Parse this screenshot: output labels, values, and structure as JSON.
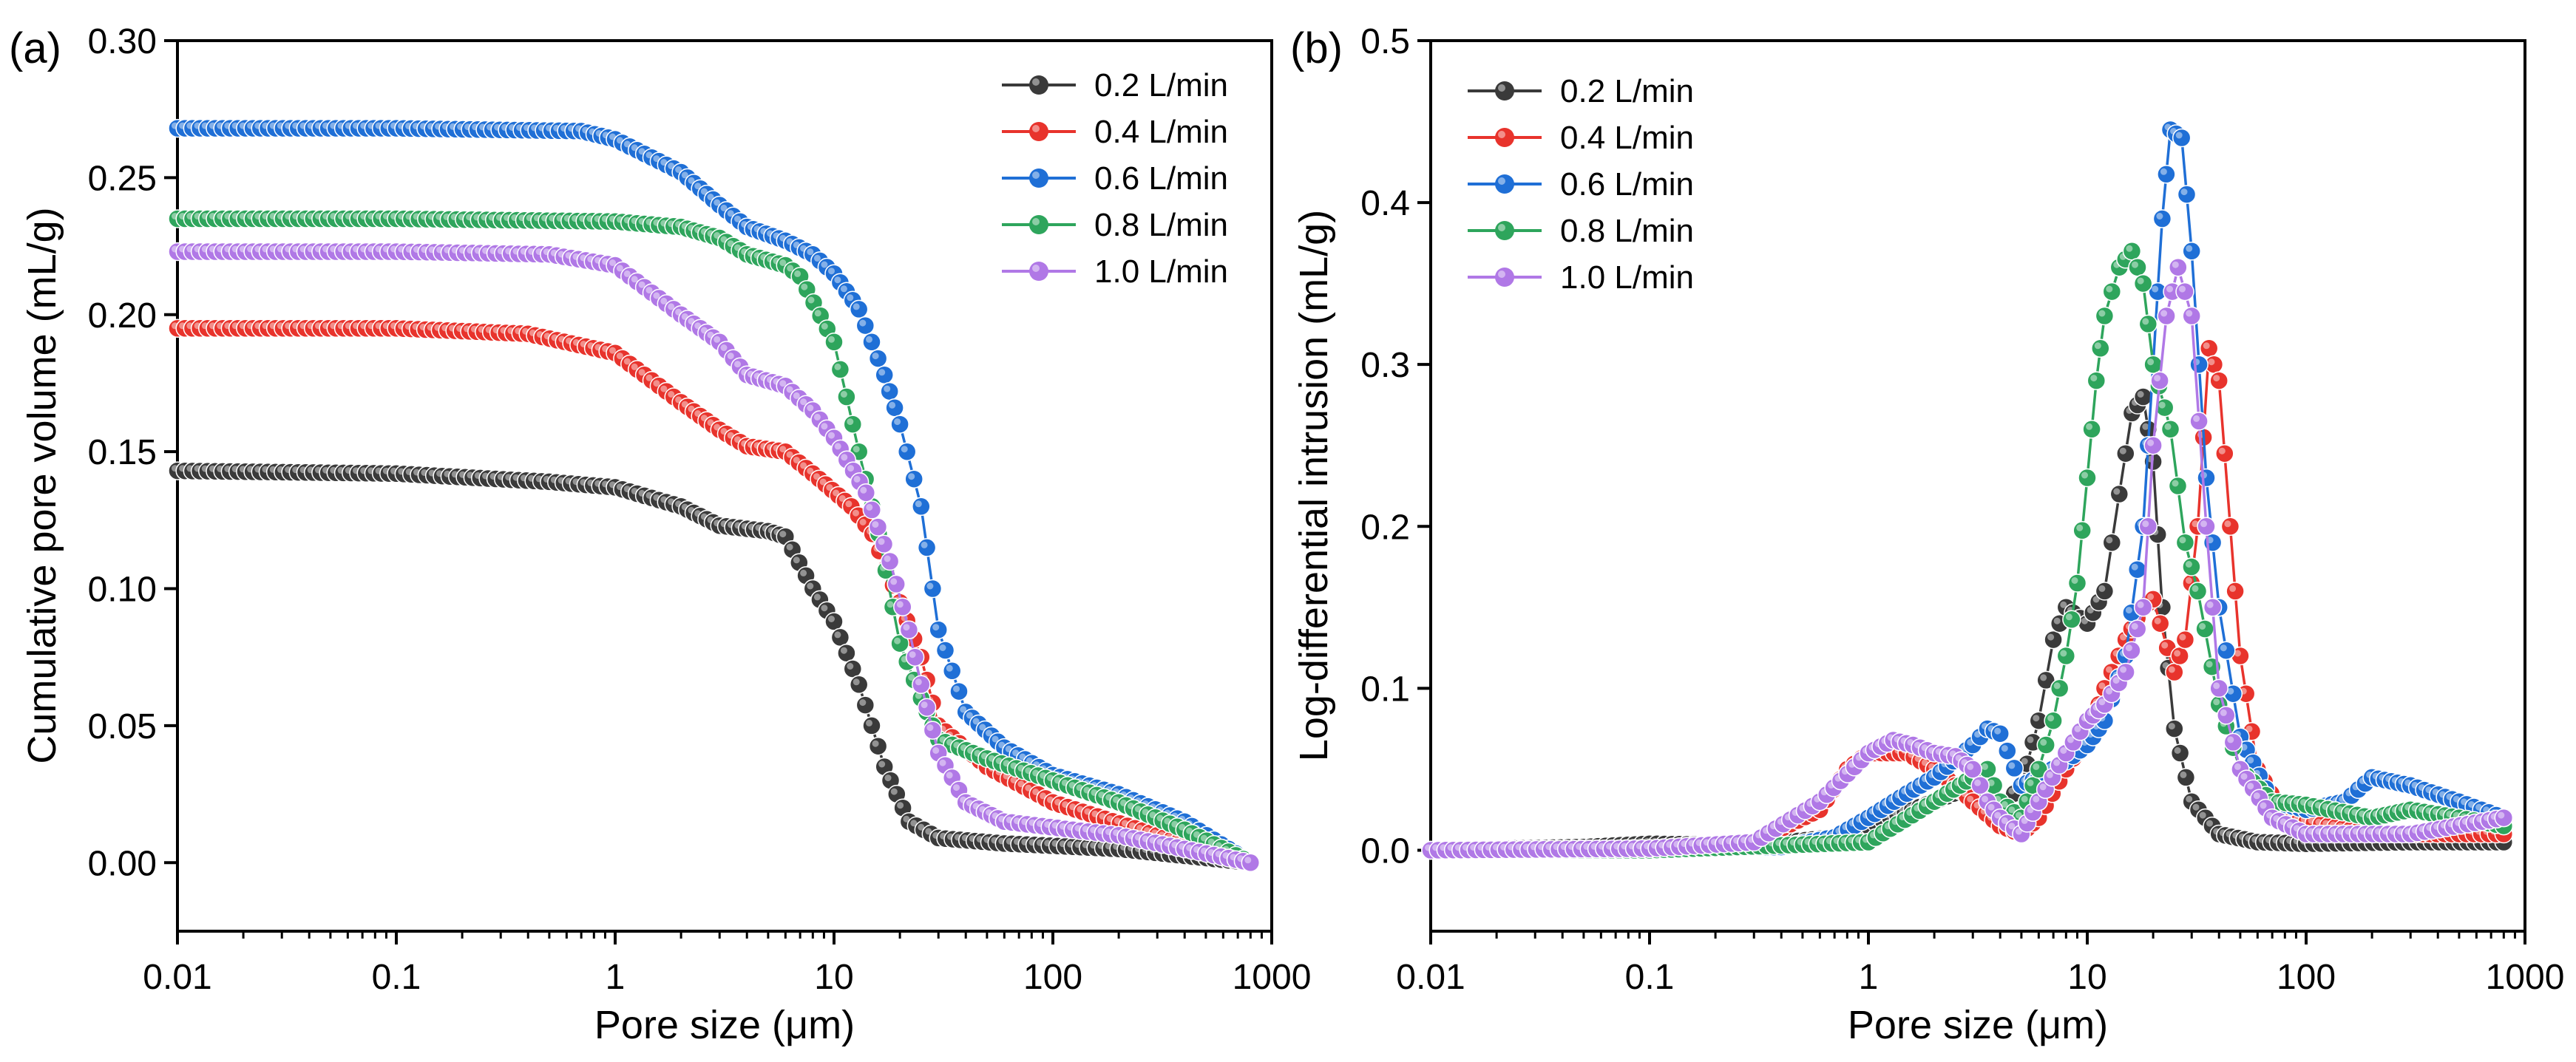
{
  "figure": {
    "legend_entries": [
      "0.2 L/min",
      "0.4 L/min",
      "0.6 L/min",
      "0.8 L/min",
      "1.0 L/min"
    ],
    "series_colors": [
      "#3a3a3a",
      "#e8332c",
      "#1f6fd6",
      "#2ea55c",
      "#b078e6"
    ]
  },
  "chart_data": [
    {
      "type": "line",
      "panel_label": "(a)",
      "title": "",
      "xlabel": "Pore size (μm)",
      "ylabel": "Cumulative pore volume (mL/g)",
      "xscale": "log",
      "xlim": [
        0.01,
        1000
      ],
      "ylim": [
        -0.025,
        0.3
      ],
      "xticks": [
        0.01,
        0.1,
        1,
        10,
        100,
        1000
      ],
      "xtick_labels": [
        "0.01",
        "0.1",
        "1",
        "10",
        "100",
        "1000"
      ],
      "yticks": [
        0.0,
        0.05,
        0.1,
        0.15,
        0.2,
        0.25,
        0.3
      ],
      "ytick_labels": [
        "0.00",
        "0.05",
        "0.10",
        "0.15",
        "0.20",
        "0.25",
        "0.30"
      ],
      "legend_position": "top-right",
      "grid": false,
      "series": [
        {
          "name": "0.2 L/min",
          "points": [
            [
              0.01,
              0.143
            ],
            [
              0.1,
              0.142
            ],
            [
              0.5,
              0.139
            ],
            [
              1,
              0.137
            ],
            [
              2,
              0.13
            ],
            [
              3,
              0.123
            ],
            [
              5,
              0.121
            ],
            [
              6,
              0.119
            ],
            [
              8,
              0.1
            ],
            [
              10,
              0.088
            ],
            [
              13,
              0.065
            ],
            [
              17,
              0.035
            ],
            [
              22,
              0.015
            ],
            [
              30,
              0.009
            ],
            [
              60,
              0.007
            ],
            [
              200,
              0.005
            ],
            [
              800,
              0.0
            ]
          ]
        },
        {
          "name": "0.4 L/min",
          "points": [
            [
              0.01,
              0.195
            ],
            [
              0.1,
              0.195
            ],
            [
              0.4,
              0.193
            ],
            [
              1,
              0.186
            ],
            [
              2,
              0.168
            ],
            [
              3,
              0.158
            ],
            [
              4,
              0.152
            ],
            [
              6,
              0.15
            ],
            [
              8,
              0.142
            ],
            [
              12,
              0.13
            ],
            [
              15,
              0.12
            ],
            [
              20,
              0.095
            ],
            [
              25,
              0.075
            ],
            [
              30,
              0.05
            ],
            [
              50,
              0.035
            ],
            [
              100,
              0.022
            ],
            [
              300,
              0.01
            ],
            [
              800,
              0.0
            ]
          ]
        },
        {
          "name": "0.6 L/min",
          "points": [
            [
              0.01,
              0.268
            ],
            [
              0.1,
              0.268
            ],
            [
              0.7,
              0.267
            ],
            [
              1,
              0.264
            ],
            [
              2,
              0.252
            ],
            [
              3,
              0.24
            ],
            [
              4,
              0.232
            ],
            [
              6,
              0.227
            ],
            [
              8,
              0.222
            ],
            [
              10,
              0.215
            ],
            [
              13,
              0.202
            ],
            [
              17,
              0.178
            ],
            [
              20,
              0.16
            ],
            [
              25,
              0.13
            ],
            [
              30,
              0.085
            ],
            [
              40,
              0.055
            ],
            [
              60,
              0.042
            ],
            [
              100,
              0.032
            ],
            [
              200,
              0.025
            ],
            [
              400,
              0.015
            ],
            [
              800,
              0.0
            ]
          ]
        },
        {
          "name": "0.8 L/min",
          "points": [
            [
              0.01,
              0.235
            ],
            [
              0.1,
              0.235
            ],
            [
              1,
              0.234
            ],
            [
              2,
              0.232
            ],
            [
              3,
              0.228
            ],
            [
              4,
              0.222
            ],
            [
              6,
              0.218
            ],
            [
              7,
              0.214
            ],
            [
              10,
              0.19
            ],
            [
              13,
              0.15
            ],
            [
              16,
              0.12
            ],
            [
              20,
              0.08
            ],
            [
              25,
              0.06
            ],
            [
              30,
              0.045
            ],
            [
              50,
              0.038
            ],
            [
              100,
              0.03
            ],
            [
              200,
              0.022
            ],
            [
              400,
              0.012
            ],
            [
              800,
              0.0
            ]
          ]
        },
        {
          "name": "1.0 L/min",
          "points": [
            [
              0.01,
              0.223
            ],
            [
              0.1,
              0.223
            ],
            [
              0.5,
              0.222
            ],
            [
              1,
              0.218
            ],
            [
              2,
              0.2
            ],
            [
              3,
              0.19
            ],
            [
              4,
              0.178
            ],
            [
              6,
              0.174
            ],
            [
              8,
              0.165
            ],
            [
              10,
              0.155
            ],
            [
              14,
              0.135
            ],
            [
              18,
              0.11
            ],
            [
              22,
              0.085
            ],
            [
              25,
              0.065
            ],
            [
              30,
              0.04
            ],
            [
              40,
              0.022
            ],
            [
              60,
              0.015
            ],
            [
              200,
              0.01
            ],
            [
              800,
              0.0
            ]
          ]
        }
      ]
    },
    {
      "type": "line",
      "panel_label": "(b)",
      "title": "",
      "xlabel": "Pore size (μm)",
      "ylabel": "Log-differential intrusion (mL/g)",
      "xscale": "log",
      "xlim": [
        0.01,
        1000
      ],
      "ylim": [
        -0.05,
        0.5
      ],
      "xticks": [
        0.01,
        0.1,
        1,
        10,
        100,
        1000
      ],
      "xtick_labels": [
        "0.01",
        "0.1",
        "1",
        "10",
        "100",
        "1000"
      ],
      "yticks": [
        0.0,
        0.1,
        0.2,
        0.3,
        0.4,
        0.5
      ],
      "ytick_labels": [
        "0.0",
        "0.1",
        "0.2",
        "0.3",
        "0.4",
        "0.5"
      ],
      "legend_position": "top-left",
      "grid": false,
      "series": [
        {
          "name": "0.2 L/min",
          "points": [
            [
              0.01,
              0.0
            ],
            [
              0.05,
              0.002
            ],
            [
              0.1,
              0.004
            ],
            [
              0.3,
              0.003
            ],
            [
              0.7,
              0.008
            ],
            [
              1,
              0.015
            ],
            [
              2,
              0.03
            ],
            [
              3,
              0.04
            ],
            [
              4,
              0.025
            ],
            [
              5,
              0.04
            ],
            [
              6,
              0.08
            ],
            [
              7,
              0.13
            ],
            [
              8,
              0.15
            ],
            [
              10,
              0.14
            ],
            [
              12,
              0.16
            ],
            [
              14,
              0.22
            ],
            [
              16,
              0.27
            ],
            [
              18,
              0.28
            ],
            [
              20,
              0.24
            ],
            [
              22,
              0.15
            ],
            [
              25,
              0.075
            ],
            [
              30,
              0.03
            ],
            [
              40,
              0.01
            ],
            [
              60,
              0.005
            ],
            [
              100,
              0.004
            ],
            [
              300,
              0.005
            ],
            [
              800,
              0.005
            ]
          ]
        },
        {
          "name": "0.4 L/min",
          "points": [
            [
              0.01,
              0.0
            ],
            [
              0.1,
              0.001
            ],
            [
              0.3,
              0.005
            ],
            [
              0.6,
              0.025
            ],
            [
              0.8,
              0.05
            ],
            [
              1,
              0.06
            ],
            [
              1.5,
              0.06
            ],
            [
              2,
              0.05
            ],
            [
              2.5,
              0.04
            ],
            [
              3,
              0.03
            ],
            [
              4,
              0.015
            ],
            [
              5,
              0.01
            ],
            [
              6,
              0.02
            ],
            [
              8,
              0.05
            ],
            [
              10,
              0.07
            ],
            [
              12,
              0.1
            ],
            [
              15,
              0.13
            ],
            [
              18,
              0.15
            ],
            [
              20,
              0.155
            ],
            [
              25,
              0.11
            ],
            [
              28,
              0.13
            ],
            [
              32,
              0.2
            ],
            [
              36,
              0.31
            ],
            [
              40,
              0.29
            ],
            [
              45,
              0.2
            ],
            [
              50,
              0.12
            ],
            [
              60,
              0.05
            ],
            [
              80,
              0.02
            ],
            [
              200,
              0.01
            ],
            [
              500,
              0.01
            ],
            [
              800,
              0.01
            ]
          ]
        },
        {
          "name": "0.6 L/min",
          "points": [
            [
              0.01,
              0.0
            ],
            [
              0.1,
              0.001
            ],
            [
              0.4,
              0.002
            ],
            [
              0.7,
              0.008
            ],
            [
              1,
              0.02
            ],
            [
              1.5,
              0.035
            ],
            [
              2,
              0.045
            ],
            [
              3,
              0.065
            ],
            [
              3.5,
              0.075
            ],
            [
              4,
              0.072
            ],
            [
              5,
              0.04
            ],
            [
              6,
              0.045
            ],
            [
              8,
              0.055
            ],
            [
              10,
              0.065
            ],
            [
              12,
              0.08
            ],
            [
              15,
              0.12
            ],
            [
              18,
              0.2
            ],
            [
              20,
              0.3
            ],
            [
              22,
              0.39
            ],
            [
              24,
              0.445
            ],
            [
              27,
              0.44
            ],
            [
              30,
              0.37
            ],
            [
              35,
              0.23
            ],
            [
              40,
              0.15
            ],
            [
              50,
              0.07
            ],
            [
              70,
              0.03
            ],
            [
              100,
              0.025
            ],
            [
              150,
              0.03
            ],
            [
              200,
              0.045
            ],
            [
              300,
              0.04
            ],
            [
              500,
              0.03
            ],
            [
              800,
              0.02
            ]
          ]
        },
        {
          "name": "0.8 L/min",
          "points": [
            [
              0.01,
              0.0
            ],
            [
              0.1,
              0.0
            ],
            [
              0.4,
              0.003
            ],
            [
              1,
              0.005
            ],
            [
              2,
              0.03
            ],
            [
              3,
              0.045
            ],
            [
              3.5,
              0.05
            ],
            [
              4,
              0.03
            ],
            [
              5,
              0.02
            ],
            [
              6,
              0.05
            ],
            [
              7,
              0.08
            ],
            [
              8,
              0.12
            ],
            [
              9,
              0.165
            ],
            [
              10,
              0.23
            ],
            [
              11,
              0.29
            ],
            [
              12,
              0.33
            ],
            [
              14,
              0.36
            ],
            [
              16,
              0.37
            ],
            [
              18,
              0.35
            ],
            [
              20,
              0.3
            ],
            [
              24,
              0.26
            ],
            [
              28,
              0.19
            ],
            [
              32,
              0.16
            ],
            [
              40,
              0.09
            ],
            [
              50,
              0.05
            ],
            [
              70,
              0.03
            ],
            [
              100,
              0.028
            ],
            [
              200,
              0.02
            ],
            [
              300,
              0.025
            ],
            [
              500,
              0.02
            ],
            [
              800,
              0.015
            ]
          ]
        },
        {
          "name": "1.0 L/min",
          "points": [
            [
              0.01,
              0.0
            ],
            [
              0.1,
              0.001
            ],
            [
              0.3,
              0.005
            ],
            [
              0.6,
              0.03
            ],
            [
              1,
              0.06
            ],
            [
              1.3,
              0.068
            ],
            [
              1.6,
              0.065
            ],
            [
              2,
              0.06
            ],
            [
              2.5,
              0.058
            ],
            [
              3,
              0.05
            ],
            [
              3.5,
              0.03
            ],
            [
              4,
              0.02
            ],
            [
              5,
              0.01
            ],
            [
              6,
              0.03
            ],
            [
              8,
              0.06
            ],
            [
              10,
              0.08
            ],
            [
              12,
              0.09
            ],
            [
              15,
              0.11
            ],
            [
              18,
              0.15
            ],
            [
              20,
              0.25
            ],
            [
              23,
              0.33
            ],
            [
              26,
              0.36
            ],
            [
              30,
              0.33
            ],
            [
              35,
              0.2
            ],
            [
              40,
              0.1
            ],
            [
              50,
              0.05
            ],
            [
              70,
              0.02
            ],
            [
              100,
              0.01
            ],
            [
              300,
              0.01
            ],
            [
              800,
              0.02
            ]
          ]
        }
      ]
    }
  ]
}
